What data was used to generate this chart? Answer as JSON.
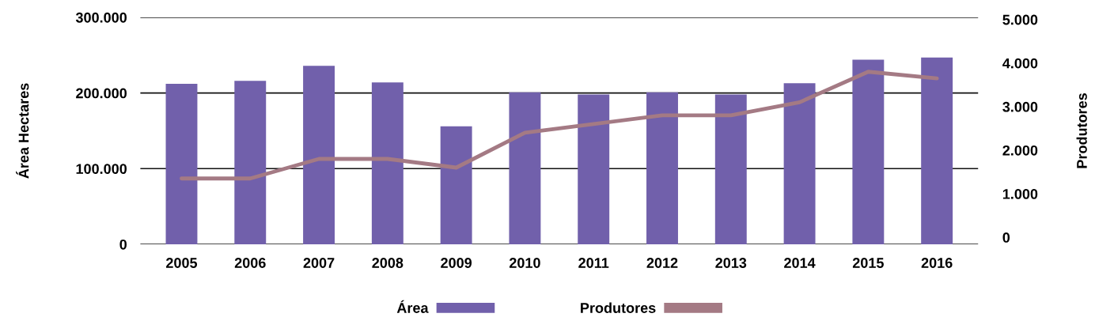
{
  "chart_data": {
    "type": "bar",
    "categories": [
      "2005",
      "2006",
      "2007",
      "2008",
      "2009",
      "2010",
      "2011",
      "2012",
      "2013",
      "2014",
      "2015",
      "2016"
    ],
    "ylabel": "Área Hectares",
    "y2label": "Produtores",
    "ylim": [
      0,
      300000
    ],
    "yticks": [
      {
        "value": 0,
        "label": "0"
      },
      {
        "value": 100000,
        "label": "100.000"
      },
      {
        "value": 200000,
        "label": "200.000"
      },
      {
        "value": 300000,
        "label": "300.000"
      }
    ],
    "y2lim": [
      -160,
      5050
    ],
    "y2ticks": [
      {
        "value": 0,
        "label": "0"
      },
      {
        "value": 1000,
        "label": "1.000"
      },
      {
        "value": 2000,
        "label": "2.000"
      },
      {
        "value": 3000,
        "label": "3.000"
      },
      {
        "value": 4000,
        "label": "4.000"
      },
      {
        "value": 5000,
        "label": "5.000"
      }
    ],
    "grid": "y",
    "legend": "bottom",
    "series": [
      {
        "name": "Área",
        "color": "#7160ab",
        "values": [
          212000,
          216000,
          236000,
          214000,
          156000,
          201000,
          198000,
          201000,
          198000,
          213000,
          244000,
          247000
        ]
      },
      {
        "name": "Produtores",
        "type": "line",
        "axis": "y2",
        "color": "#a47a84",
        "values": [
          1350,
          1350,
          1800,
          1800,
          1600,
          2400,
          2600,
          2800,
          2800,
          3100,
          3800,
          3650
        ]
      }
    ]
  }
}
